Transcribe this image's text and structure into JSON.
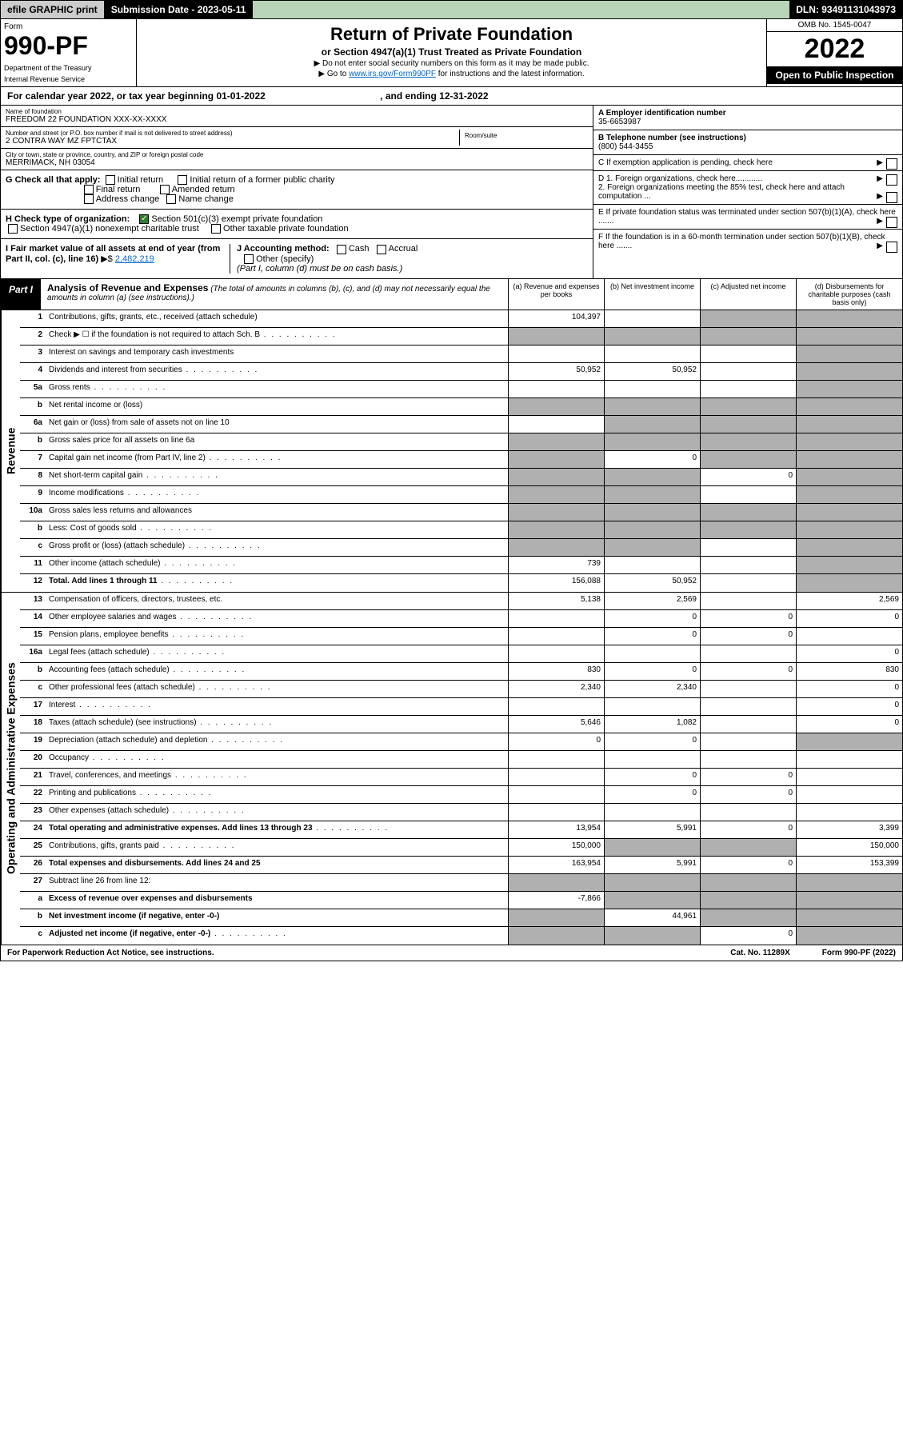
{
  "topbar": {
    "efile": "efile GRAPHIC print",
    "submission": "Submission Date - 2023-05-11",
    "dln": "DLN: 93491131043973"
  },
  "header": {
    "form_label": "Form",
    "form_number": "990-PF",
    "dept1": "Department of the Treasury",
    "dept2": "Internal Revenue Service",
    "title": "Return of Private Foundation",
    "subtitle": "or Section 4947(a)(1) Trust Treated as Private Foundation",
    "note1": "▶ Do not enter social security numbers on this form as it may be made public.",
    "note2_prefix": "▶ Go to ",
    "note2_link": "www.irs.gov/Form990PF",
    "note2_suffix": " for instructions and the latest information.",
    "omb": "OMB No. 1545-0047",
    "year": "2022",
    "inspection": "Open to Public Inspection"
  },
  "calendar": {
    "text1": "For calendar year 2022, or tax year beginning 01-01-2022",
    "text2": ", and ending 12-31-2022"
  },
  "foundation": {
    "name_lbl": "Name of foundation",
    "name": "FREEDOM 22 FOUNDATION XXX-XX-XXXX",
    "ein_lbl": "A Employer identification number",
    "ein": "35-6653987",
    "addr_lbl": "Number and street (or P.O. box number if mail is not delivered to street address)",
    "addr": "2 CONTRA WAY MZ FPTCTAX",
    "room_lbl": "Room/suite",
    "phone_lbl": "B Telephone number (see instructions)",
    "phone": "(800) 544-3455",
    "city_lbl": "City or town, state or province, country, and ZIP or foreign postal code",
    "city": "MERRIMACK, NH  03054"
  },
  "checks": {
    "g_label": "G Check all that apply:",
    "initial": "Initial return",
    "initial_former": "Initial return of a former public charity",
    "final": "Final return",
    "amended": "Amended return",
    "addr_change": "Address change",
    "name_change": "Name change",
    "h_label": "H Check type of organization:",
    "h_501c3": "Section 501(c)(3) exempt private foundation",
    "h_4947": "Section 4947(a)(1) nonexempt charitable trust",
    "h_other": "Other taxable private foundation",
    "i_label": "I Fair market value of all assets at end of year (from Part II, col. (c), line 16)",
    "i_value": "2,482,219",
    "j_label": "J Accounting method:",
    "j_cash": "Cash",
    "j_accrual": "Accrual",
    "j_other": "Other (specify)",
    "j_note": "(Part I, column (d) must be on cash basis.)"
  },
  "right_panel": {
    "c": "C If exemption application is pending, check here",
    "d1": "D 1. Foreign organizations, check here............",
    "d2": "2. Foreign organizations meeting the 85% test, check here and attach computation ...",
    "e": "E  If private foundation status was terminated under section 507(b)(1)(A), check here .......",
    "f": "F  If the foundation is in a 60-month termination under section 507(b)(1)(B), check here .......",
    "arrow": "▶"
  },
  "part1": {
    "label": "Part I",
    "title": "Analysis of Revenue and Expenses",
    "desc": " (The total of amounts in columns (b), (c), and (d) may not necessarily equal the amounts in column (a) (see instructions).)",
    "col_a": "(a)  Revenue and expenses per books",
    "col_b": "(b)  Net investment income",
    "col_c": "(c)  Adjusted net income",
    "col_d": "(d)  Disbursements for charitable purposes (cash basis only)"
  },
  "side_labels": {
    "revenue": "Revenue",
    "expenses": "Operating and Administrative Expenses"
  },
  "rows": [
    {
      "n": "1",
      "lbl": "Contributions, gifts, grants, etc., received (attach schedule)",
      "a": "104,397",
      "b": "",
      "c": "shaded",
      "d": "shaded"
    },
    {
      "n": "2",
      "lbl": "Check ▶ ☐ if the foundation is not required to attach Sch. B",
      "a": "shaded",
      "b": "shaded",
      "c": "shaded",
      "d": "shaded",
      "dotted": true
    },
    {
      "n": "3",
      "lbl": "Interest on savings and temporary cash investments",
      "a": "",
      "b": "",
      "c": "",
      "d": "shaded"
    },
    {
      "n": "4",
      "lbl": "Dividends and interest from securities",
      "a": "50,952",
      "b": "50,952",
      "c": "",
      "d": "shaded",
      "dotted": true
    },
    {
      "n": "5a",
      "lbl": "Gross rents",
      "a": "",
      "b": "",
      "c": "",
      "d": "shaded",
      "dotted": true
    },
    {
      "n": "b",
      "lbl": "Net rental income or (loss)",
      "a": "shaded",
      "b": "shaded",
      "c": "shaded",
      "d": "shaded"
    },
    {
      "n": "6a",
      "lbl": "Net gain or (loss) from sale of assets not on line 10",
      "a": "",
      "b": "shaded",
      "c": "shaded",
      "d": "shaded"
    },
    {
      "n": "b",
      "lbl": "Gross sales price for all assets on line 6a",
      "a": "shaded",
      "b": "shaded",
      "c": "shaded",
      "d": "shaded"
    },
    {
      "n": "7",
      "lbl": "Capital gain net income (from Part IV, line 2)",
      "a": "shaded",
      "b": "0",
      "c": "shaded",
      "d": "shaded",
      "dotted": true
    },
    {
      "n": "8",
      "lbl": "Net short-term capital gain",
      "a": "shaded",
      "b": "shaded",
      "c": "0",
      "d": "shaded",
      "dotted": true
    },
    {
      "n": "9",
      "lbl": "Income modifications",
      "a": "shaded",
      "b": "shaded",
      "c": "",
      "d": "shaded",
      "dotted": true
    },
    {
      "n": "10a",
      "lbl": "Gross sales less returns and allowances",
      "a": "shaded",
      "b": "shaded",
      "c": "shaded",
      "d": "shaded"
    },
    {
      "n": "b",
      "lbl": "Less: Cost of goods sold",
      "a": "shaded",
      "b": "shaded",
      "c": "shaded",
      "d": "shaded",
      "dotted": true
    },
    {
      "n": "c",
      "lbl": "Gross profit or (loss) (attach schedule)",
      "a": "shaded",
      "b": "shaded",
      "c": "",
      "d": "shaded",
      "dotted": true
    },
    {
      "n": "11",
      "lbl": "Other income (attach schedule)",
      "a": "739",
      "b": "",
      "c": "",
      "d": "shaded",
      "dotted": true
    },
    {
      "n": "12",
      "lbl": "Total. Add lines 1 through 11",
      "a": "156,088",
      "b": "50,952",
      "c": "",
      "d": "shaded",
      "bold": true,
      "dotted": true
    }
  ],
  "exp_rows": [
    {
      "n": "13",
      "lbl": "Compensation of officers, directors, trustees, etc.",
      "a": "5,138",
      "b": "2,569",
      "c": "",
      "d": "2,569"
    },
    {
      "n": "14",
      "lbl": "Other employee salaries and wages",
      "a": "",
      "b": "0",
      "c": "0",
      "d": "0",
      "dotted": true
    },
    {
      "n": "15",
      "lbl": "Pension plans, employee benefits",
      "a": "",
      "b": "0",
      "c": "0",
      "d": "",
      "dotted": true
    },
    {
      "n": "16a",
      "lbl": "Legal fees (attach schedule)",
      "a": "",
      "b": "",
      "c": "",
      "d": "0",
      "dotted": true
    },
    {
      "n": "b",
      "lbl": "Accounting fees (attach schedule)",
      "a": "830",
      "b": "0",
      "c": "0",
      "d": "830",
      "dotted": true
    },
    {
      "n": "c",
      "lbl": "Other professional fees (attach schedule)",
      "a": "2,340",
      "b": "2,340",
      "c": "",
      "d": "0",
      "dotted": true
    },
    {
      "n": "17",
      "lbl": "Interest",
      "a": "",
      "b": "",
      "c": "",
      "d": "0",
      "dotted": true
    },
    {
      "n": "18",
      "lbl": "Taxes (attach schedule) (see instructions)",
      "a": "5,646",
      "b": "1,082",
      "c": "",
      "d": "0",
      "dotted": true
    },
    {
      "n": "19",
      "lbl": "Depreciation (attach schedule) and depletion",
      "a": "0",
      "b": "0",
      "c": "",
      "d": "shaded",
      "dotted": true
    },
    {
      "n": "20",
      "lbl": "Occupancy",
      "a": "",
      "b": "",
      "c": "",
      "d": "",
      "dotted": true
    },
    {
      "n": "21",
      "lbl": "Travel, conferences, and meetings",
      "a": "",
      "b": "0",
      "c": "0",
      "d": "",
      "dotted": true
    },
    {
      "n": "22",
      "lbl": "Printing and publications",
      "a": "",
      "b": "0",
      "c": "0",
      "d": "",
      "dotted": true
    },
    {
      "n": "23",
      "lbl": "Other expenses (attach schedule)",
      "a": "",
      "b": "",
      "c": "",
      "d": "",
      "dotted": true
    },
    {
      "n": "24",
      "lbl": "Total operating and administrative expenses. Add lines 13 through 23",
      "a": "13,954",
      "b": "5,991",
      "c": "0",
      "d": "3,399",
      "bold": true,
      "dotted": true
    },
    {
      "n": "25",
      "lbl": "Contributions, gifts, grants paid",
      "a": "150,000",
      "b": "shaded",
      "c": "shaded",
      "d": "150,000",
      "dotted": true
    },
    {
      "n": "26",
      "lbl": "Total expenses and disbursements. Add lines 24 and 25",
      "a": "163,954",
      "b": "5,991",
      "c": "0",
      "d": "153,399",
      "bold": true
    },
    {
      "n": "27",
      "lbl": "Subtract line 26 from line 12:",
      "a": "shaded",
      "b": "shaded",
      "c": "shaded",
      "d": "shaded"
    },
    {
      "n": "a",
      "lbl": "Excess of revenue over expenses and disbursements",
      "a": "-7,866",
      "b": "shaded",
      "c": "shaded",
      "d": "shaded",
      "bold": true
    },
    {
      "n": "b",
      "lbl": "Net investment income (if negative, enter -0-)",
      "a": "shaded",
      "b": "44,961",
      "c": "shaded",
      "d": "shaded",
      "bold": true
    },
    {
      "n": "c",
      "lbl": "Adjusted net income (if negative, enter -0-)",
      "a": "shaded",
      "b": "shaded",
      "c": "0",
      "d": "shaded",
      "bold": true,
      "dotted": true
    }
  ],
  "footer": {
    "paperwork": "For Paperwork Reduction Act Notice, see instructions.",
    "cat": "Cat. No. 11289X",
    "form": "Form 990-PF (2022)"
  }
}
